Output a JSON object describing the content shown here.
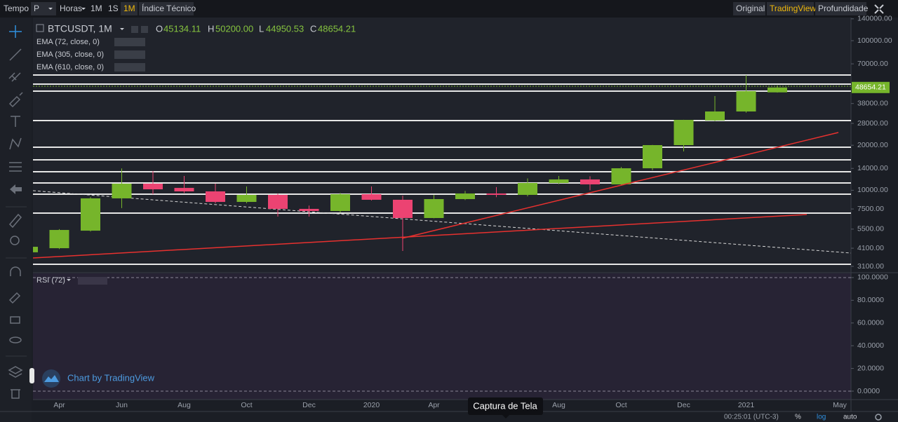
{
  "toolbar": {
    "tempo": "Tempo",
    "period": "P",
    "hours": "Horas",
    "intervals": [
      "1M",
      "1S",
      "1M"
    ],
    "indicators": "Índice Técnico",
    "views": [
      "Original",
      "TradingView",
      "Profundidade"
    ]
  },
  "legend": {
    "symbol": "BTCUSDT, 1M",
    "open_label": "O",
    "open": "45134.11",
    "high_label": "H",
    "high": "50200.00",
    "low_label": "L",
    "low": "44950.53",
    "close_label": "C",
    "close": "48654.21",
    "studies": [
      "EMA (72, close, 0)",
      "EMA (305, close, 0)",
      "EMA (610, close, 0)"
    ]
  },
  "chart_data": {
    "type": "candlestick",
    "log_scale": true,
    "up_color": "#76b52b",
    "down_color": "#ec4372",
    "categories": [
      null,
      "Apr",
      null,
      "Jun",
      null,
      "Aug",
      null,
      "Oct",
      null,
      "Dec",
      null,
      "2020",
      null,
      "Apr",
      null,
      null,
      null,
      "Aug",
      null,
      "Oct",
      null,
      "Dec",
      null,
      "2021",
      null,
      null,
      "May"
    ],
    "open": [
      3850,
      4100,
      5370,
      8830,
      11070,
      10370,
      9830,
      8360,
      9315,
      7510,
      7270,
      9415,
      8640,
      6525,
      8730,
      9520,
      9315,
      11190,
      11815,
      10950,
      14030,
      20040,
      29300,
      33630,
      45134.11,
      null,
      null
    ],
    "high": [
      4250,
      5500,
      9000,
      14000,
      13450,
      12470,
      11070,
      10600,
      9500,
      7900,
      9600,
      10600,
      9200,
      9300,
      9900,
      10500,
      12000,
      12470,
      12400,
      14300,
      20100,
      29600,
      42640,
      58900,
      50200,
      null,
      null
    ],
    "low": [
      3800,
      4050,
      5300,
      7600,
      9400,
      9600,
      8200,
      8200,
      6670,
      6670,
      7100,
      8550,
      3930,
      6500,
      8600,
      9000,
      9100,
      11000,
      10000,
      10800,
      13600,
      18180,
      29000,
      33000,
      44950.53,
      null,
      null
    ],
    "close": [
      4190,
      5430,
      8830,
      11070,
      10150,
      9830,
      8360,
      9315,
      7510,
      7270,
      9415,
      8640,
      6525,
      8730,
      9520,
      9315,
      11190,
      11815,
      10950,
      14030,
      20040,
      29540,
      33630,
      45980,
      48654.21,
      null,
      null
    ],
    "ylim": [
      2843,
      147500
    ],
    "yticks": [
      {
        "value": 140000,
        "label": "140000.00"
      },
      {
        "value": 100000,
        "label": "100000.00"
      },
      {
        "value": 70000,
        "label": "70000.00"
      },
      {
        "value": 38000,
        "label": "38000.00"
      },
      {
        "value": 28000,
        "label": "28000.00"
      },
      {
        "value": 20000,
        "label": "20000.00"
      },
      {
        "value": 14000,
        "label": "14000.00"
      },
      {
        "value": 10000,
        "label": "10000.00"
      },
      {
        "value": 7500,
        "label": "7500.00"
      },
      {
        "value": 5500,
        "label": "5500.00"
      },
      {
        "value": 4100,
        "label": "4100.00"
      },
      {
        "value": 3100,
        "label": "3100.00"
      }
    ]
  },
  "rsi_panel": {
    "title": "RSI (72)",
    "ylim": [
      -7.4,
      104.9
    ],
    "yticks": [
      {
        "value": 100,
        "label": "100.0000"
      },
      {
        "value": 80,
        "label": "80.0000"
      },
      {
        "value": 60,
        "label": "60.0000"
      },
      {
        "value": 40,
        "label": "40.0000"
      },
      {
        "value": 20,
        "label": "20.0000"
      },
      {
        "value": 0,
        "label": "0.0000"
      }
    ]
  },
  "watermark": "Chart by TradingView",
  "tooltip": "Captura de Tela",
  "footer": {
    "time": "00:25:01 (UTC-3)",
    "percent": "%",
    "log": "log",
    "auto": "auto"
  }
}
